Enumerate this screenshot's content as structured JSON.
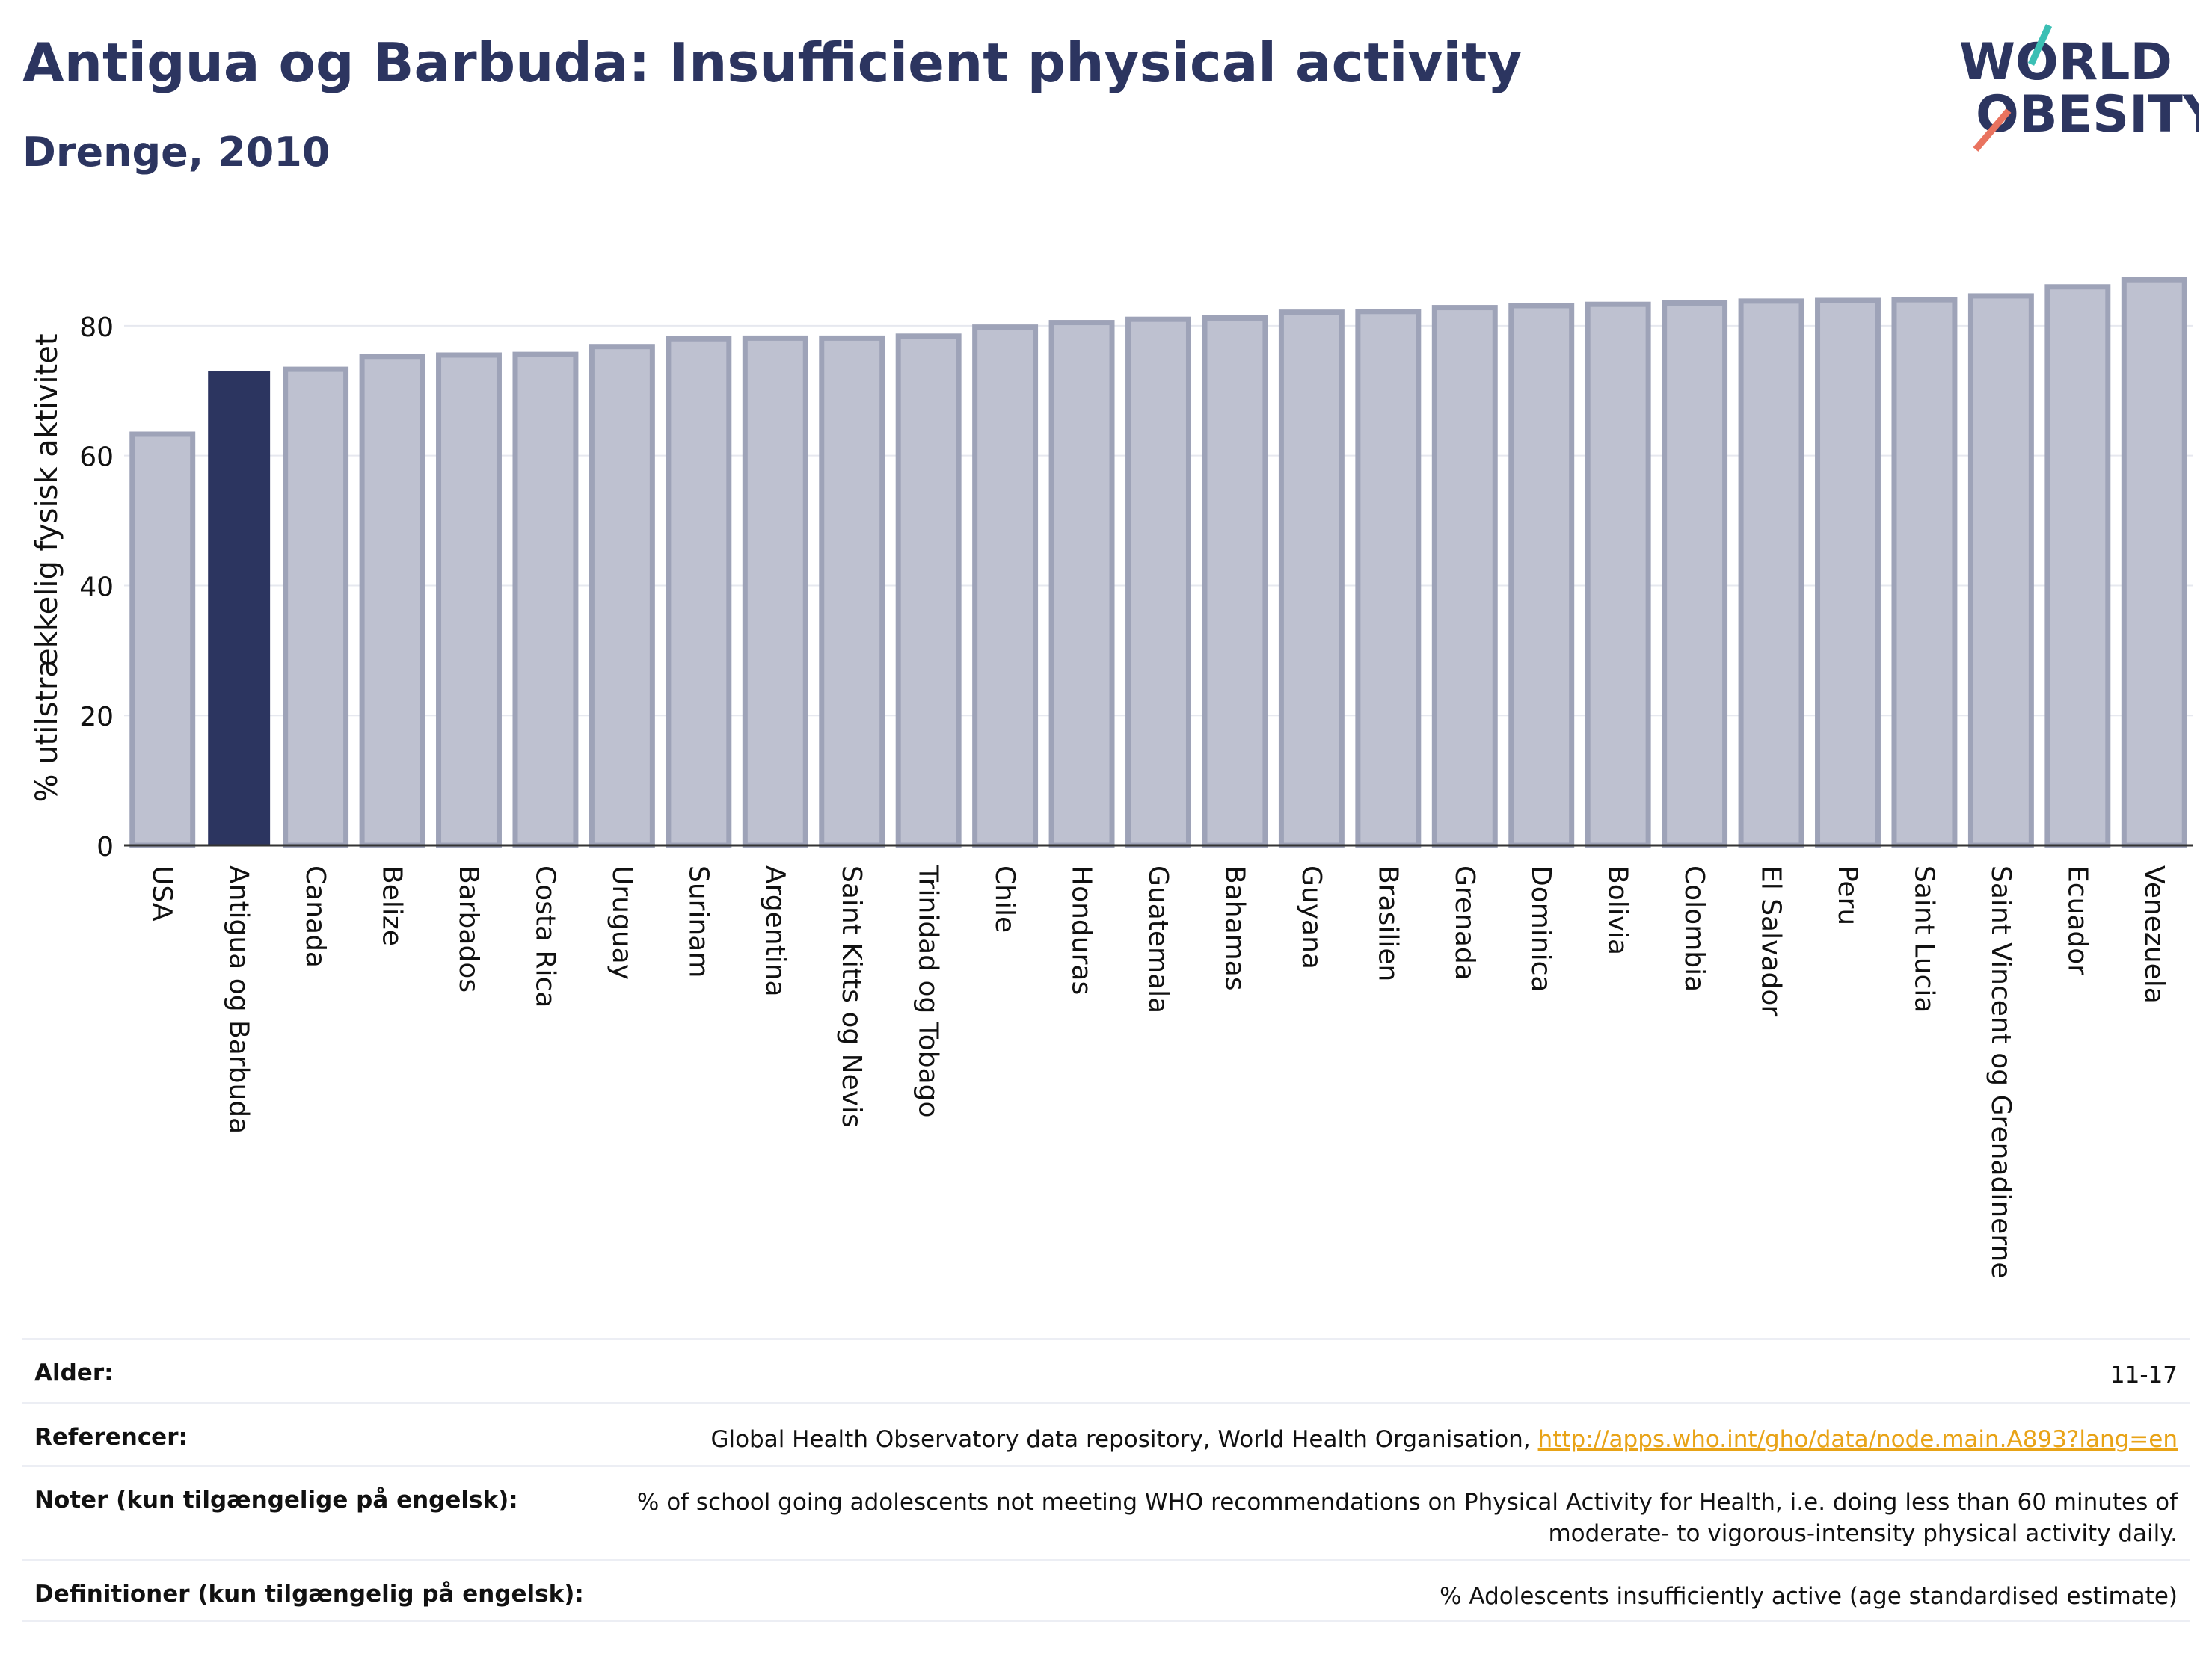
{
  "header": {
    "title": "Antigua og Barbuda: Insufficient physical activity",
    "subtitle": "Drenge, 2010"
  },
  "logo": {
    "line1": "WORLD",
    "line2": "OBESITY"
  },
  "colors": {
    "highlight": "#2c3560",
    "bar_fill": "#bec1d0",
    "bar_stroke": "#9ea3b8",
    "title": "#2c3560",
    "logo_teal": "#3bbfb4",
    "logo_coral": "#e9735f",
    "link": "#e8a317"
  },
  "chart_data": {
    "type": "bar",
    "title": "Antigua og Barbuda: Insufficient physical activity",
    "subtitle": "Drenge, 2010",
    "ylabel": "% utilstrækkelig fysisk aktivitet",
    "ylim": [
      0,
      90
    ],
    "yticks": [
      0,
      20,
      40,
      60,
      80
    ],
    "grid": true,
    "highlight": "Antigua og Barbuda",
    "categories": [
      "USA",
      "Antigua og Barbuda",
      "Canada",
      "Belize",
      "Barbados",
      "Costa Rica",
      "Uruguay",
      "Surinam",
      "Argentina",
      "Saint Kitts og Nevis",
      "Trinidad og Tobago",
      "Chile",
      "Honduras",
      "Guatemala",
      "Bahamas",
      "Guyana",
      "Brasilien",
      "Grenada",
      "Dominica",
      "Bolivia",
      "Colombia",
      "El Salvador",
      "Peru",
      "Saint Lucia",
      "Saint Vincent og Grenadinerne",
      "Ecuador",
      "Venezuela"
    ],
    "values": [
      63.3,
      72.9,
      73.3,
      75.3,
      75.5,
      75.6,
      76.8,
      78.0,
      78.1,
      78.1,
      78.4,
      79.8,
      80.5,
      81.0,
      81.2,
      82.1,
      82.2,
      82.8,
      83.1,
      83.3,
      83.5,
      83.8,
      83.9,
      84.0,
      84.6,
      86.0,
      87.1
    ]
  },
  "info": {
    "rows": [
      {
        "label": "Alder:",
        "value": "11-17"
      },
      {
        "label": "Referencer:",
        "value": "Global Health Observatory data repository, World Health Organisation, ",
        "link": "http://apps.who.int/gho/data/node.main.A893?lang=en"
      },
      {
        "label": "Noter (kun tilgængelige på engelsk):",
        "value": "% of school going adolescents not meeting WHO recommendations on Physical Activity for Health, i.e. doing less than 60 minutes of moderate- to vigorous-intensity physical activity daily."
      },
      {
        "label": "Definitioner (kun tilgængelig på engelsk):",
        "value": "% Adolescents insufficiently active (age standardised estimate)"
      }
    ]
  }
}
